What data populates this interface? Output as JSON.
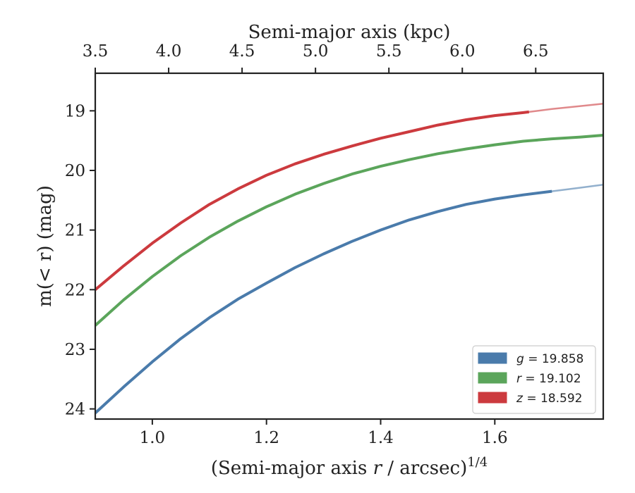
{
  "chart_data": {
    "type": "line",
    "xlabel_parts": {
      "pre": "(Semi-major axis ",
      "var": "r",
      "post": " / arcsec)",
      "sup": "1/4"
    },
    "top_xlabel": "Semi-major axis (kpc)",
    "ylabel": "m(< r) (mag)",
    "xlim": [
      0.9,
      1.79
    ],
    "ylim": [
      24.17,
      18.37
    ],
    "y_inverted": true,
    "x_ticks": [
      1.0,
      1.2,
      1.4,
      1.6
    ],
    "x_tick_labels": [
      "1.0",
      "1.2",
      "1.4",
      "1.6"
    ],
    "y_ticks": [
      19,
      20,
      21,
      22,
      23,
      24
    ],
    "y_tick_labels": [
      "19",
      "20",
      "21",
      "22",
      "23",
      "24"
    ],
    "top_ticks": [
      3.5,
      4.0,
      4.5,
      5.0,
      5.5,
      6.0,
      6.5
    ],
    "top_tick_labels": [
      "3.5",
      "4.0",
      "4.5",
      "5.0",
      "5.5",
      "6.0",
      "6.5"
    ],
    "top_xlim": [
      3.5,
      6.96
    ],
    "grid": false,
    "legend_position": "lower right",
    "series": [
      {
        "name_var": "g",
        "name_value": "= 19.858",
        "color": "#4a7bab",
        "x": [
          0.9,
          0.95,
          1.0,
          1.05,
          1.1,
          1.15,
          1.2,
          1.25,
          1.3,
          1.35,
          1.4,
          1.45,
          1.5,
          1.55,
          1.6,
          1.65,
          1.7,
          1.75,
          1.79
        ],
        "y": [
          24.07,
          23.63,
          23.21,
          22.82,
          22.47,
          22.16,
          21.89,
          21.63,
          21.4,
          21.19,
          21.0,
          20.83,
          20.69,
          20.57,
          20.48,
          20.41,
          20.35,
          20.29,
          20.24
        ],
        "solid_until": 1.7
      },
      {
        "name_var": "r",
        "name_value": "= 19.102",
        "color": "#5ba55b",
        "x": [
          0.9,
          0.95,
          1.0,
          1.05,
          1.1,
          1.15,
          1.2,
          1.25,
          1.3,
          1.35,
          1.4,
          1.45,
          1.5,
          1.55,
          1.6,
          1.65,
          1.7,
          1.75,
          1.79
        ],
        "y": [
          22.6,
          22.17,
          21.78,
          21.43,
          21.12,
          20.85,
          20.61,
          20.4,
          20.22,
          20.06,
          19.93,
          19.82,
          19.72,
          19.64,
          19.57,
          19.51,
          19.47,
          19.44,
          19.41
        ],
        "solid_until": 1.79
      },
      {
        "name_var": "z",
        "name_value": "= 18.592",
        "color": "#cc3a3e",
        "x": [
          0.9,
          0.95,
          1.0,
          1.05,
          1.1,
          1.15,
          1.2,
          1.25,
          1.3,
          1.35,
          1.4,
          1.45,
          1.5,
          1.55,
          1.6,
          1.65,
          1.7,
          1.75,
          1.79
        ],
        "y": [
          22.0,
          21.6,
          21.22,
          20.88,
          20.57,
          20.31,
          20.08,
          19.89,
          19.73,
          19.59,
          19.46,
          19.35,
          19.24,
          19.15,
          19.08,
          19.03,
          18.97,
          18.92,
          18.88
        ],
        "solid_until": 1.66
      }
    ]
  }
}
